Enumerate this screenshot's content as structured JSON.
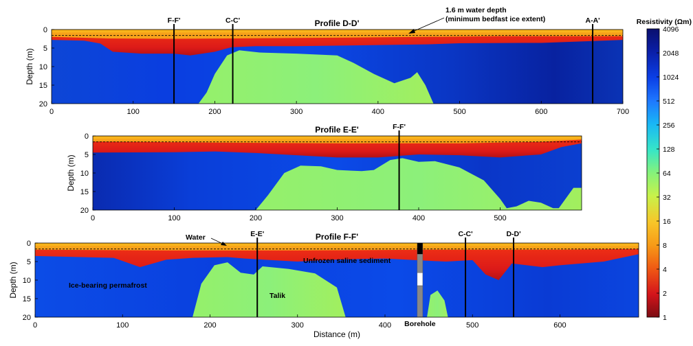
{
  "chart_data": {
    "type": "heatmap",
    "colorbar": {
      "title": "Resistivity (Ωm)",
      "scale": "log2",
      "range": [
        1,
        4096
      ],
      "ticks": [
        "4096",
        "2048",
        "1024",
        "512",
        "256",
        "128",
        "64",
        "32",
        "16",
        "8",
        "4",
        "2",
        "1"
      ]
    },
    "panels": [
      {
        "title": "Profile D-D'",
        "ylabel": "Depth (m)",
        "xlabel": "",
        "xlim": [
          0,
          700
        ],
        "ylim": [
          0,
          20
        ],
        "xticks": [
          0,
          100,
          200,
          300,
          400,
          500,
          600,
          700
        ],
        "yticks": [
          0,
          5,
          10,
          15,
          20
        ],
        "water_line_depth": 1.6,
        "surface_layer_bottom": [
          [
            0,
            2
          ],
          [
            70,
            2.4
          ],
          [
            150,
            2.5
          ],
          [
            220,
            2.4
          ],
          [
            350,
            2.2
          ],
          [
            450,
            2.0
          ],
          [
            550,
            1.8
          ],
          [
            700,
            1.8
          ]
        ],
        "frozen_top": [
          [
            0,
            2.8
          ],
          [
            40,
            3.0
          ],
          [
            60,
            3.8
          ],
          [
            75,
            6.0
          ],
          [
            110,
            6.5
          ],
          [
            150,
            6.5
          ],
          [
            170,
            7.0
          ],
          [
            200,
            6.0
          ],
          [
            220,
            4.8
          ],
          [
            250,
            4.5
          ],
          [
            300,
            4.5
          ],
          [
            400,
            4.2
          ],
          [
            460,
            4.0
          ],
          [
            500,
            3.7
          ],
          [
            600,
            3.6
          ],
          [
            700,
            2.8
          ]
        ],
        "talik": [
          [
            180,
            20
          ],
          [
            190,
            17
          ],
          [
            200,
            12
          ],
          [
            215,
            7
          ],
          [
            230,
            5.6
          ],
          [
            255,
            6.2
          ],
          [
            300,
            6.5
          ],
          [
            350,
            7
          ],
          [
            370,
            9
          ],
          [
            395,
            12
          ],
          [
            420,
            14.5
          ],
          [
            440,
            13
          ],
          [
            448,
            11.5
          ],
          [
            458,
            15
          ],
          [
            468,
            20
          ]
        ],
        "section_lines": [
          {
            "x": 150,
            "label": "F-F'"
          },
          {
            "x": 222,
            "label": "C-C'"
          },
          {
            "x": 663,
            "label": "A-A'"
          }
        ],
        "annotations": [
          "1.6 m water depth",
          "(minimum bedfast ice extent)"
        ]
      },
      {
        "title": "Profile E-E'",
        "ylabel": "Depth (m)",
        "xlabel": "",
        "xlim": [
          0,
          600
        ],
        "ylim": [
          0,
          20
        ],
        "xticks": [
          0,
          100,
          200,
          300,
          400,
          500
        ],
        "yticks": [
          0,
          5,
          10,
          15,
          20
        ],
        "water_line_depth": 1.6,
        "surface_layer_bottom": [
          [
            0,
            1.5
          ],
          [
            150,
            1.8
          ],
          [
            300,
            2.0
          ],
          [
            450,
            2.0
          ],
          [
            550,
            1.6
          ],
          [
            600,
            1.0
          ]
        ],
        "frozen_top": [
          [
            0,
            4.5
          ],
          [
            100,
            4.4
          ],
          [
            150,
            4.2
          ],
          [
            200,
            4.6
          ],
          [
            300,
            5.8
          ],
          [
            350,
            5.8
          ],
          [
            400,
            5.0
          ],
          [
            450,
            5.2
          ],
          [
            500,
            5.8
          ],
          [
            550,
            5.0
          ],
          [
            575,
            3.0
          ],
          [
            600,
            2.0
          ]
        ],
        "talik": [
          [
            200,
            20
          ],
          [
            215,
            16
          ],
          [
            235,
            10
          ],
          [
            255,
            8
          ],
          [
            280,
            8.2
          ],
          [
            300,
            9.2
          ],
          [
            330,
            9.5
          ],
          [
            345,
            9.2
          ],
          [
            365,
            6.5
          ],
          [
            380,
            6
          ],
          [
            400,
            7
          ],
          [
            420,
            6.8
          ],
          [
            450,
            8.5
          ],
          [
            480,
            12
          ],
          [
            500,
            17
          ],
          [
            508,
            19.5
          ],
          [
            520,
            19
          ],
          [
            535,
            17.5
          ],
          [
            550,
            18
          ],
          [
            565,
            19.5
          ],
          [
            572,
            19.5
          ],
          [
            590,
            14
          ],
          [
            600,
            14
          ],
          [
            600,
            20
          ]
        ],
        "section_lines": [
          {
            "x": 376,
            "label": "F-F'"
          }
        ]
      },
      {
        "title": "Profile F-F'",
        "ylabel": "Depth (m)",
        "xlabel": "Distance (m)",
        "xlim": [
          0,
          690
        ],
        "ylim": [
          0,
          20
        ],
        "xticks": [
          0,
          100,
          200,
          300,
          400,
          500,
          600
        ],
        "yticks": [
          0,
          5,
          10,
          15,
          20
        ],
        "water_line_depth": 1.6,
        "surface_layer_bottom": [
          [
            0,
            1.8
          ],
          [
            150,
            2.0
          ],
          [
            300,
            2.0
          ],
          [
            450,
            1.8
          ],
          [
            600,
            1.8
          ],
          [
            690,
            1.6
          ]
        ],
        "frozen_top": [
          [
            0,
            3.5
          ],
          [
            90,
            4.0
          ],
          [
            120,
            6.5
          ],
          [
            150,
            4.5
          ],
          [
            180,
            4.0
          ],
          [
            220,
            3.8
          ],
          [
            240,
            4.2
          ],
          [
            300,
            5.0
          ],
          [
            350,
            4.4
          ],
          [
            400,
            4.2
          ],
          [
            450,
            4.8
          ],
          [
            470,
            5.0
          ],
          [
            500,
            4.6
          ],
          [
            515,
            8.5
          ],
          [
            530,
            10.0
          ],
          [
            545,
            5.5
          ],
          [
            580,
            6.5
          ],
          [
            600,
            6.0
          ],
          [
            650,
            5.0
          ],
          [
            690,
            3.0
          ]
        ],
        "talik": [
          [
            180,
            20
          ],
          [
            190,
            11
          ],
          [
            205,
            6
          ],
          [
            220,
            5.2
          ],
          [
            235,
            8
          ],
          [
            250,
            8.5
          ],
          [
            260,
            6.3
          ],
          [
            290,
            7
          ],
          [
            320,
            8.2
          ],
          [
            345,
            12
          ],
          [
            355,
            20
          ]
        ],
        "talik2": [
          [
            448,
            20
          ],
          [
            452,
            14
          ],
          [
            460,
            12.8
          ],
          [
            468,
            15.5
          ],
          [
            472,
            20
          ]
        ],
        "borehole": {
          "x": 440,
          "label": "Borehole"
        },
        "section_lines": [
          {
            "x": 254,
            "label": "E-E'"
          },
          {
            "x": 492,
            "label": "C-C'"
          },
          {
            "x": 547,
            "label": "D-D'"
          }
        ],
        "annotations": [
          "Water",
          "Unfrozen saline sediment",
          "Ice-bearing permafrost",
          "Talik"
        ]
      }
    ]
  }
}
